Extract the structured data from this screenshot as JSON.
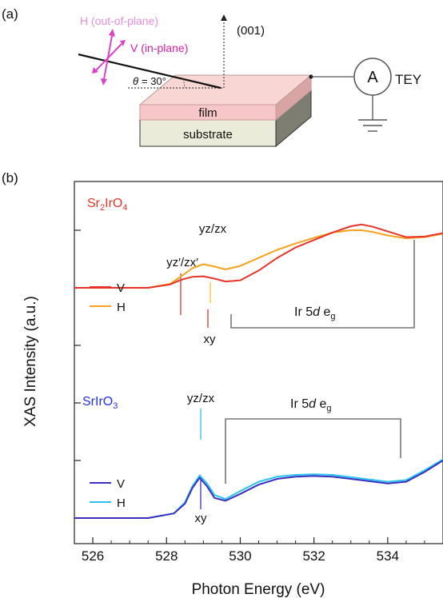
{
  "panel_a": {
    "label": "(a)",
    "h_label": "H (out-of-plane)",
    "v_label": "V (in-plane)",
    "axis_label": "(001)",
    "theta_symbol": "θ",
    "theta_value": "= 30°",
    "ammeter_symbol": "A",
    "tey_label": "TEY",
    "film_label": "film",
    "substrate_label": "substrate",
    "colors": {
      "polarization": "#e040c8",
      "film": "#f6c6c8",
      "substrate": "#ebebd9"
    }
  },
  "chart_data": {
    "type": "line",
    "panel_label": "(b)",
    "xlabel": "Photon Energy (eV)",
    "ylabel": "XAS Intensity (a.u.)",
    "xlim": [
      525.5,
      535.5
    ],
    "xticks": [
      526,
      528,
      530,
      532,
      534
    ],
    "ylim": [
      0,
      5
    ],
    "grid": false,
    "groups": [
      {
        "material": "Sr₂IrO₄",
        "material_color": "#e8332a",
        "legend_placement": "left",
        "series": [
          {
            "name": "V",
            "color": "#e8332a",
            "x": [
              525.5,
              527.5,
              528.1,
              528.4,
              528.7,
              529.0,
              529.3,
              529.6,
              530.0,
              530.5,
              531.0,
              531.5,
              532.0,
              532.5,
              533.0,
              533.3,
              533.6,
              534.0,
              534.5,
              535.0,
              535.5
            ],
            "y": [
              4.0,
              4.0,
              4.06,
              4.14,
              4.19,
              4.2,
              4.16,
              4.11,
              4.13,
              4.3,
              4.52,
              4.7,
              4.83,
              4.96,
              5.07,
              5.1,
              5.06,
              4.98,
              4.88,
              4.89,
              4.95
            ]
          },
          {
            "name": "H",
            "color": "#f6a21b",
            "x": [
              525.5,
              527.5,
              528.1,
              528.4,
              528.7,
              529.0,
              529.3,
              529.6,
              530.0,
              530.5,
              531.0,
              531.5,
              532.0,
              532.5,
              533.0,
              533.3,
              533.6,
              534.0,
              534.5,
              535.0,
              535.5
            ],
            "y": [
              4.0,
              4.0,
              4.07,
              4.2,
              4.34,
              4.41,
              4.37,
              4.32,
              4.38,
              4.52,
              4.66,
              4.77,
              4.87,
              4.96,
              5.0,
              5.0,
              4.97,
              4.91,
              4.86,
              4.88,
              4.94
            ]
          }
        ],
        "annotations": [
          {
            "text": "yz/zx",
            "x": 529.0
          },
          {
            "text": "yz′/zx′",
            "x": 528.3
          },
          {
            "text": "xy",
            "x": 529.0
          },
          {
            "text": "Ir 5d eg",
            "x_range": [
              529.7,
              534.7
            ]
          }
        ]
      },
      {
        "material": "SrIrO₃",
        "material_color": "#2432e0",
        "legend_placement": "left",
        "series": [
          {
            "name": "V",
            "color": "#3a2fc0",
            "x": [
              525.5,
              527.5,
              528.2,
              528.5,
              528.7,
              528.9,
              529.1,
              529.3,
              529.6,
              530.0,
              530.5,
              531.0,
              531.5,
              532.0,
              532.5,
              533.0,
              533.5,
              534.0,
              534.5,
              535.0,
              535.5
            ],
            "y": [
              0.0,
              0.0,
              0.08,
              0.25,
              0.52,
              0.7,
              0.55,
              0.35,
              0.3,
              0.42,
              0.58,
              0.68,
              0.72,
              0.73,
              0.72,
              0.68,
              0.64,
              0.6,
              0.63,
              0.8,
              1.0
            ]
          },
          {
            "name": "H",
            "color": "#29c3f0",
            "x": [
              525.5,
              527.5,
              528.2,
              528.5,
              528.7,
              528.9,
              529.1,
              529.3,
              529.6,
              530.0,
              530.5,
              531.0,
              531.5,
              532.0,
              532.5,
              533.0,
              533.5,
              534.0,
              534.5,
              535.0,
              535.5
            ],
            "y": [
              0.0,
              0.0,
              0.08,
              0.27,
              0.55,
              0.74,
              0.6,
              0.4,
              0.33,
              0.47,
              0.63,
              0.72,
              0.75,
              0.76,
              0.75,
              0.71,
              0.67,
              0.63,
              0.66,
              0.83,
              1.02
            ]
          }
        ],
        "annotations": [
          {
            "text": "yz/zx",
            "x": 528.9
          },
          {
            "text": "xy",
            "x": 528.9
          },
          {
            "text": "Ir 5d eg",
            "x_range": [
              529.6,
              534.4
            ]
          }
        ]
      }
    ]
  },
  "labels_b": {
    "sr214_prefix": "Sr",
    "sr214_sub1": "2",
    "sr214_mid": "IrO",
    "sr214_sub2": "4",
    "sr113": "SrIrO",
    "sr113_sub": "3",
    "v": "V",
    "h": "H",
    "yzzx": "yz/zx",
    "yzzx_prime": "yz′/zx′",
    "xy": "xy",
    "ir_prefix": "Ir 5",
    "ir_d": "d",
    "ir_e": " e",
    "ir_g": "g"
  }
}
